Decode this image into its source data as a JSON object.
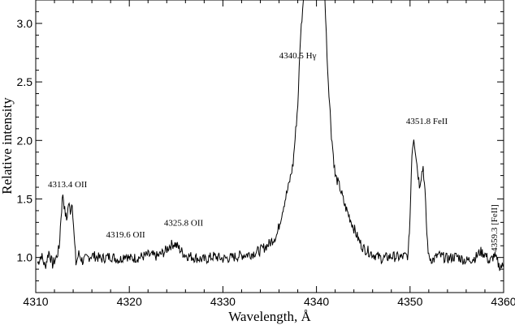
{
  "chart_data": {
    "type": "line",
    "xlabel": "Wavelength, Å",
    "ylabel": "Relative intensity",
    "xlim": [
      4310,
      4360
    ],
    "ylim": [
      0.7,
      3.2
    ],
    "x_ticks": [
      4310,
      4320,
      4330,
      4340,
      4350,
      4360
    ],
    "x_tick_labels": [
      "4310",
      "4320",
      "4330",
      "4340",
      "4350",
      "4360"
    ],
    "y_ticks": [
      1.0,
      1.5,
      2.0,
      2.5,
      3.0
    ],
    "y_tick_labels": [
      "1.0",
      "1.5",
      "2.0",
      "2.5",
      "3.0"
    ],
    "grid": false,
    "series": [
      {
        "x": [
          4310.2,
          4310.6,
          4311.0,
          4311.4,
          4311.8,
          4312.2,
          4312.5,
          4312.7,
          4312.9,
          4313.1,
          4313.3,
          4313.5,
          4313.7,
          4313.9,
          4314.1,
          4314.3,
          4314.6,
          4315.0,
          4316.0,
          4317.0,
          4318.0,
          4319.0,
          4319.6,
          4320.0,
          4321.0,
          4322.0,
          4323.0,
          4323.8,
          4324.3,
          4324.8,
          4325.2,
          4325.6,
          4326.0,
          4327.0,
          4328.0,
          4329.0,
          4330.0,
          4331.0,
          4332.0,
          4333.0,
          4334.0,
          4335.0,
          4335.8,
          4336.5,
          4337.0,
          4337.5,
          4338.0,
          4338.3,
          4338.6,
          4338.8,
          4339.0,
          4339.5,
          4340.0,
          4340.3,
          4340.6,
          4340.9,
          4341.2,
          4341.6,
          4342.0,
          4342.5,
          4343.0,
          4343.5,
          4344.0,
          4344.5,
          4345.0,
          4346.0,
          4347.0,
          4348.0,
          4349.0,
          4349.8,
          4350.0,
          4350.2,
          4350.4,
          4350.6,
          4350.8,
          4351.0,
          4351.2,
          4351.4,
          4351.6,
          4351.8,
          4352.0,
          4352.5,
          4353.0,
          4354.0,
          4355.0,
          4356.0,
          4357.0,
          4357.5,
          4358.0,
          4358.5,
          4359.0,
          4359.5,
          4360.0
        ],
        "y": [
          0.95,
          1.02,
          0.92,
          1.05,
          0.94,
          1.0,
          1.08,
          1.35,
          1.55,
          1.4,
          1.32,
          1.46,
          1.4,
          1.48,
          1.18,
          0.95,
          1.03,
          0.97,
          1.02,
          0.99,
          1.01,
          0.98,
          1.03,
          0.99,
          1.0,
          1.02,
          1.01,
          1.05,
          1.1,
          1.12,
          1.09,
          1.05,
          1.02,
          1.0,
          0.98,
          1.01,
          0.99,
          1.0,
          1.02,
          1.03,
          1.06,
          1.12,
          1.2,
          1.45,
          1.6,
          1.8,
          2.3,
          2.9,
          3.2,
          3.2,
          3.2,
          3.2,
          3.2,
          3.2,
          3.2,
          3.2,
          2.6,
          2.05,
          1.7,
          1.6,
          1.45,
          1.35,
          1.25,
          1.15,
          1.08,
          1.03,
          0.99,
          1.01,
          1.0,
          1.02,
          1.35,
          1.9,
          2.03,
          1.9,
          1.75,
          1.62,
          1.7,
          1.78,
          1.55,
          1.2,
          1.0,
          0.98,
          1.02,
          0.99,
          1.01,
          0.97,
          1.0,
          1.05,
          1.03,
          0.96,
          1.02,
          0.93,
          0.92
        ]
      }
    ],
    "annotations": [
      {
        "text": "4313.4 OII",
        "x": 4313.4,
        "y": 1.6,
        "rotate": 0
      },
      {
        "text": "4319.6 OII",
        "x": 4319.6,
        "y": 1.17,
        "rotate": 0
      },
      {
        "text": "4325.8 OII",
        "x": 4325.8,
        "y": 1.27,
        "rotate": 0
      },
      {
        "text": "4340.5 Hγ",
        "x": 4338.0,
        "y": 2.7,
        "rotate": 0
      },
      {
        "text": "4351.8 FeII",
        "x": 4351.8,
        "y": 2.14,
        "rotate": 0
      },
      {
        "text": "4359.3 [FeII]",
        "x": 4359.3,
        "y": 1.25,
        "rotate": -90
      }
    ]
  }
}
